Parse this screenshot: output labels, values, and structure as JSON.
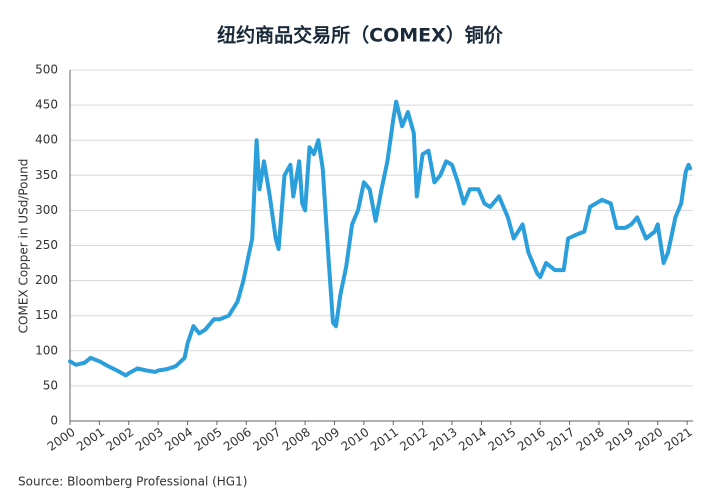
{
  "chart_data": {
    "type": "line",
    "title": "纽约商品交易所（COMEX）铜价",
    "y_label": "COMEX Copper in USd/Pound",
    "source": "Source: Bloomberg Professional (HG1)",
    "x": [
      2000.0,
      2000.2,
      2000.5,
      2000.7,
      2001.0,
      2001.3,
      2001.6,
      2001.9,
      2002.0,
      2002.3,
      2002.6,
      2002.9,
      2003.0,
      2003.3,
      2003.6,
      2003.9,
      2004.0,
      2004.2,
      2004.4,
      2004.6,
      2004.9,
      2005.1,
      2005.4,
      2005.7,
      2005.9,
      2006.0,
      2006.2,
      2006.35,
      2006.45,
      2006.6,
      2006.8,
      2007.0,
      2007.1,
      2007.3,
      2007.5,
      2007.6,
      2007.8,
      2007.9,
      2008.0,
      2008.15,
      2008.3,
      2008.45,
      2008.6,
      2008.8,
      2008.95,
      2009.05,
      2009.2,
      2009.4,
      2009.6,
      2009.8,
      2010.0,
      2010.2,
      2010.4,
      2010.6,
      2010.8,
      2011.0,
      2011.1,
      2011.3,
      2011.5,
      2011.7,
      2011.8,
      2012.0,
      2012.2,
      2012.4,
      2012.6,
      2012.8,
      2013.0,
      2013.2,
      2013.4,
      2013.6,
      2013.9,
      2014.1,
      2014.3,
      2014.6,
      2014.9,
      2015.1,
      2015.4,
      2015.6,
      2015.9,
      2016.0,
      2016.2,
      2016.5,
      2016.8,
      2016.95,
      2017.2,
      2017.5,
      2017.7,
      2017.9,
      2018.1,
      2018.4,
      2018.6,
      2018.9,
      2019.1,
      2019.3,
      2019.6,
      2019.9,
      2020.0,
      2020.2,
      2020.35,
      2020.6,
      2020.8,
      2020.95,
      2021.05,
      2021.1
    ],
    "series": [
      {
        "name": "COMEX Copper",
        "color": "#2b9fdb",
        "values": [
          85,
          80,
          83,
          90,
          85,
          78,
          72,
          65,
          68,
          75,
          72,
          70,
          72,
          74,
          78,
          90,
          110,
          135,
          125,
          130,
          145,
          145,
          150,
          170,
          200,
          220,
          260,
          400,
          330,
          370,
          320,
          260,
          245,
          350,
          365,
          320,
          370,
          310,
          300,
          390,
          380,
          400,
          360,
          230,
          140,
          135,
          180,
          220,
          280,
          300,
          340,
          330,
          285,
          330,
          370,
          430,
          455,
          420,
          440,
          410,
          320,
          380,
          385,
          340,
          350,
          370,
          365,
          340,
          310,
          330,
          330,
          310,
          305,
          320,
          290,
          260,
          280,
          240,
          210,
          205,
          225,
          215,
          215,
          260,
          265,
          270,
          305,
          310,
          315,
          310,
          275,
          275,
          280,
          290,
          260,
          270,
          280,
          225,
          240,
          290,
          310,
          355,
          365,
          360
        ]
      }
    ],
    "xlim": [
      2000,
      2021.2
    ],
    "xticks": [
      2000,
      2001,
      2002,
      2003,
      2004,
      2005,
      2006,
      2007,
      2008,
      2009,
      2010,
      2011,
      2012,
      2013,
      2014,
      2015,
      2016,
      2017,
      2018,
      2019,
      2020,
      2021
    ],
    "ylim": [
      0,
      500
    ],
    "yticks": [
      0,
      50,
      100,
      150,
      200,
      250,
      300,
      350,
      400,
      450,
      500
    ],
    "grid": true
  }
}
